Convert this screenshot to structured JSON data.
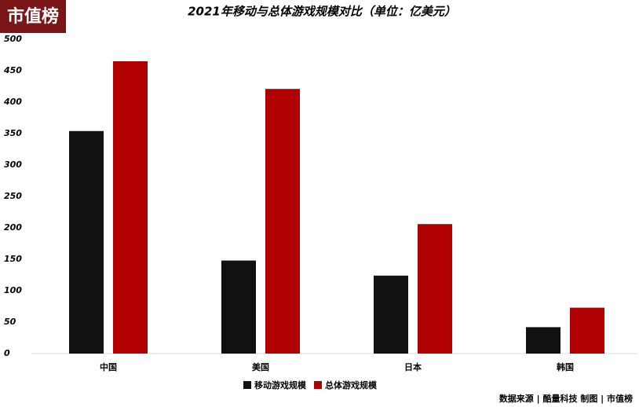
{
  "chart_data": {
    "type": "bar",
    "logo": "市值榜",
    "title": "2021年移动与总体游戏规模对比（单位：亿美元）",
    "categories": [
      "中国",
      "美国",
      "日本",
      "韩国"
    ],
    "series": [
      {
        "name": "移动游戏规模",
        "color": "#111111",
        "values": [
          354,
          148,
          124,
          42
        ]
      },
      {
        "name": "总体游戏规模",
        "color": "#b00000",
        "values": [
          465,
          421,
          206,
          73
        ]
      }
    ],
    "ylim": [
      0,
      500
    ],
    "yticks": [
      0,
      50,
      100,
      150,
      200,
      250,
      300,
      350,
      400,
      450,
      500
    ],
    "source": "数据来源 | 酷量科技 制图 | 市值榜"
  }
}
